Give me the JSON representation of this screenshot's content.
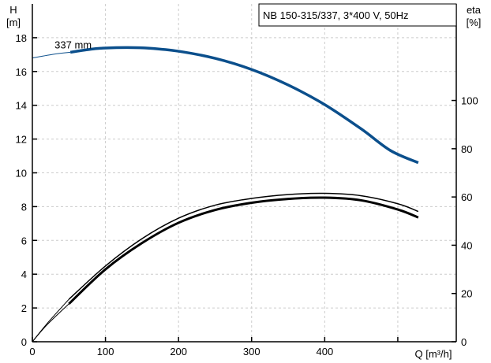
{
  "chart_data": {
    "type": "line",
    "title": "NB 150-315/337, 3*400 V, 50Hz",
    "xlabel": "Q [m³/h]",
    "ylabel_left": [
      "H",
      "[m]"
    ],
    "ylabel_right": [
      "eta",
      "[%]"
    ],
    "xlim": [
      0,
      580
    ],
    "ylim_left": [
      0,
      20
    ],
    "ylim_right": [
      0,
      140
    ],
    "grid": true,
    "x_ticks": [
      0,
      100,
      200,
      300,
      400
    ],
    "y_left_ticks": [
      0,
      2,
      4,
      6,
      8,
      10,
      12,
      14,
      16,
      18
    ],
    "y_right_ticks": [
      0,
      20,
      40,
      60,
      80,
      100
    ],
    "series": [
      {
        "name": "337 mm",
        "axis": "left",
        "color": "#0b4f8c",
        "thin_part": [
          [
            0,
            16.8
          ],
          [
            30,
            17.03
          ],
          [
            52,
            17.14
          ]
        ],
        "values": [
          [
            52,
            17.14
          ],
          [
            80,
            17.32
          ],
          [
            100,
            17.39
          ],
          [
            130,
            17.42
          ],
          [
            160,
            17.38
          ],
          [
            200,
            17.2
          ],
          [
            250,
            16.78
          ],
          [
            300,
            16.12
          ],
          [
            350,
            15.2
          ],
          [
            400,
            14.04
          ],
          [
            450,
            12.6
          ],
          [
            490,
            11.32
          ],
          [
            528,
            10.6
          ]
        ]
      },
      {
        "name": "",
        "axis": "right",
        "color": "#000000",
        "thin_part": [
          [
            0,
            0
          ],
          [
            20,
            7
          ],
          [
            50,
            15.7
          ]
        ],
        "values": [
          [
            50,
            15.7
          ],
          [
            100,
            30.0
          ],
          [
            150,
            40.9
          ],
          [
            200,
            49.3
          ],
          [
            250,
            54.6
          ],
          [
            300,
            57.6
          ],
          [
            350,
            59.2
          ],
          [
            400,
            59.7
          ],
          [
            450,
            58.6
          ],
          [
            500,
            54.8
          ],
          [
            528,
            51.5
          ]
        ]
      },
      {
        "name": "",
        "axis": "right",
        "color": "#000000",
        "thin_part": [
          [
            0,
            0
          ],
          [
            20,
            7.5
          ],
          [
            50,
            17.6
          ]
        ],
        "values": [
          [
            50,
            17.6
          ],
          [
            100,
            31.4
          ],
          [
            150,
            42.7
          ],
          [
            200,
            51.2
          ],
          [
            250,
            56.6
          ],
          [
            300,
            59.4
          ],
          [
            350,
            61.0
          ],
          [
            400,
            61.5
          ],
          [
            450,
            60.5
          ],
          [
            500,
            57.2
          ],
          [
            528,
            54.0
          ]
        ]
      }
    ]
  }
}
